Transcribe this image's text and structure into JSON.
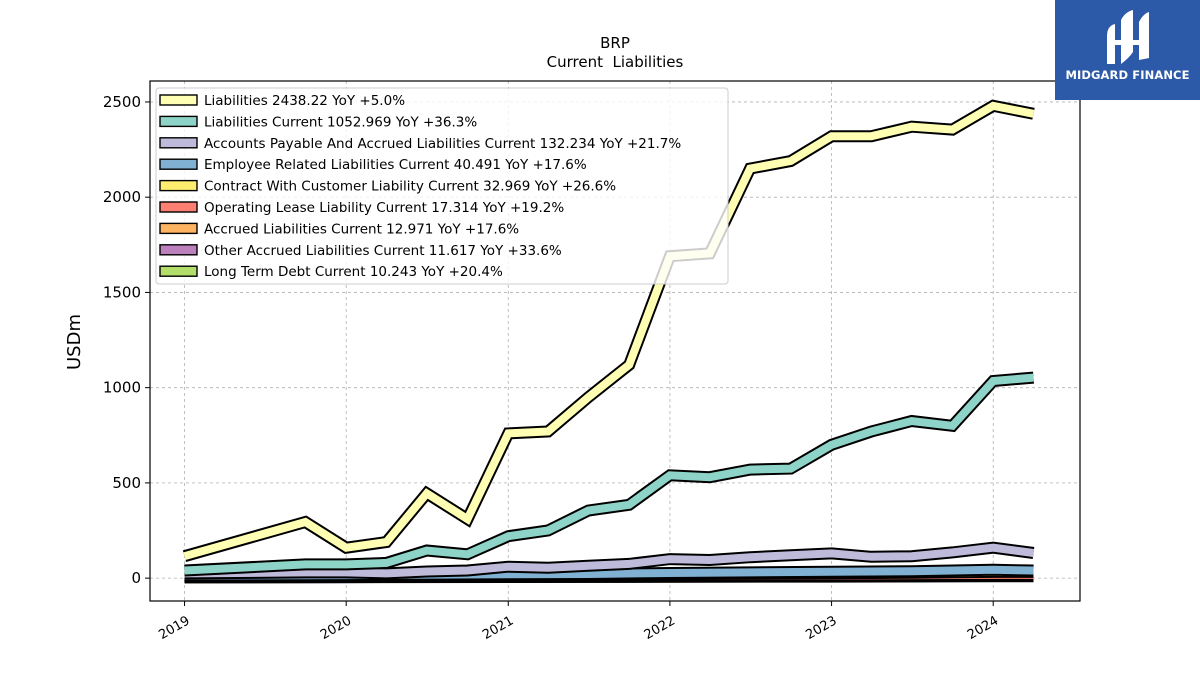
{
  "chart_data": {
    "type": "line",
    "title": "BRP",
    "subtitle": "Current  Liabilities",
    "ylabel": "USDm",
    "xlabel": "",
    "ylim": [
      -120,
      2610
    ],
    "xlim": [
      "2018-10-15",
      "2024-07-15"
    ],
    "yticks": [
      0,
      500,
      1000,
      1500,
      2000,
      2500
    ],
    "xticks": [
      "2019",
      "2020",
      "2021",
      "2022",
      "2023",
      "2024"
    ],
    "grid": true,
    "legend_position": "top-left",
    "series": [
      {
        "name": "Liabilities",
        "legend_label": "Liabilities  2438.22 YoY +5.0%",
        "color": "#ffffb3",
        "points": [
          [
            "2019-01-01",
            115
          ],
          [
            "2019-10-01",
            295
          ],
          [
            "2020-01-01",
            160
          ],
          [
            "2020-04-01",
            190
          ],
          [
            "2020-07-01",
            445
          ],
          [
            "2020-10-01",
            310
          ],
          [
            "2021-01-01",
            760
          ],
          [
            "2021-04-01",
            770
          ],
          [
            "2021-07-01",
            950
          ],
          [
            "2021-10-01",
            1120
          ],
          [
            "2022-01-01",
            1690
          ],
          [
            "2022-04-01",
            1705
          ],
          [
            "2022-07-01",
            2150
          ],
          [
            "2022-10-01",
            2190
          ],
          [
            "2023-01-01",
            2320
          ],
          [
            "2023-04-01",
            2320
          ],
          [
            "2023-07-01",
            2370
          ],
          [
            "2023-10-01",
            2355
          ],
          [
            "2024-01-01",
            2480
          ],
          [
            "2024-04-01",
            2438
          ]
        ]
      },
      {
        "name": "Liabilities Current",
        "legend_label": "Liabilities Current  1052.969 YoY +36.3%",
        "color": "#8dd3c7",
        "points": [
          [
            "2019-01-01",
            40
          ],
          [
            "2019-10-01",
            72
          ],
          [
            "2020-01-01",
            72
          ],
          [
            "2020-04-01",
            80
          ],
          [
            "2020-07-01",
            145
          ],
          [
            "2020-10-01",
            125
          ],
          [
            "2021-01-01",
            220
          ],
          [
            "2021-04-01",
            250
          ],
          [
            "2021-07-01",
            355
          ],
          [
            "2021-10-01",
            385
          ],
          [
            "2022-01-01",
            540
          ],
          [
            "2022-04-01",
            530
          ],
          [
            "2022-07-01",
            570
          ],
          [
            "2022-10-01",
            575
          ],
          [
            "2023-01-01",
            700
          ],
          [
            "2023-04-01",
            770
          ],
          [
            "2023-07-01",
            825
          ],
          [
            "2023-10-01",
            800
          ],
          [
            "2024-01-01",
            1035
          ],
          [
            "2024-04-01",
            1053
          ]
        ]
      },
      {
        "name": "Accounts Payable And Accrued Liabilities Current",
        "legend_label": "Accounts Payable And Accrued Liabilities Current  132.234 YoY +21.7%",
        "color": "#bebada",
        "points": [
          [
            "2019-01-01",
            25
          ],
          [
            "2019-10-01",
            30
          ],
          [
            "2020-01-01",
            30
          ],
          [
            "2020-04-01",
            25
          ],
          [
            "2020-07-01",
            35
          ],
          [
            "2020-10-01",
            40
          ],
          [
            "2021-01-01",
            60
          ],
          [
            "2021-04-01",
            55
          ],
          [
            "2021-07-01",
            65
          ],
          [
            "2021-10-01",
            75
          ],
          [
            "2022-01-01",
            100
          ],
          [
            "2022-04-01",
            95
          ],
          [
            "2022-07-01",
            110
          ],
          [
            "2022-10-01",
            120
          ],
          [
            "2023-01-01",
            130
          ],
          [
            "2023-04-01",
            112
          ],
          [
            "2023-07-01",
            115
          ],
          [
            "2023-10-01",
            135
          ],
          [
            "2024-01-01",
            160
          ],
          [
            "2024-04-01",
            132
          ]
        ]
      },
      {
        "name": "Employee Related Liabilities Current",
        "legend_label": "Employee Related Liabilities Current  40.491 YoY +17.6%",
        "color": "#80b1d3",
        "points": [
          [
            "2019-01-01",
            14
          ],
          [
            "2020-01-01",
            16
          ],
          [
            "2021-01-01",
            20
          ],
          [
            "2021-07-01",
            22
          ],
          [
            "2022-01-01",
            27
          ],
          [
            "2022-07-01",
            30
          ],
          [
            "2023-01-01",
            34
          ],
          [
            "2023-07-01",
            36
          ],
          [
            "2024-01-01",
            44
          ],
          [
            "2024-04-01",
            40
          ]
        ]
      },
      {
        "name": "Contract With Customer Liability Current",
        "legend_label": "Contract With Customer Liability Current  32.969 YoY +26.6%",
        "color": "#ffed6f",
        "points": [
          [
            "2019-01-01",
            10
          ],
          [
            "2020-01-01",
            12
          ],
          [
            "2021-01-01",
            15
          ],
          [
            "2022-01-01",
            20
          ],
          [
            "2022-07-01",
            24
          ],
          [
            "2023-01-01",
            26
          ],
          [
            "2023-07-01",
            28
          ],
          [
            "2024-01-01",
            33
          ],
          [
            "2024-04-01",
            33
          ]
        ]
      },
      {
        "name": "Operating Lease Liability Current",
        "legend_label": "Operating Lease Liability Current  17.314 YoY +19.2%",
        "color": "#fb8072",
        "points": [
          [
            "2019-01-01",
            8
          ],
          [
            "2020-01-01",
            9
          ],
          [
            "2021-01-01",
            10
          ],
          [
            "2022-01-01",
            12
          ],
          [
            "2023-01-01",
            14
          ],
          [
            "2024-01-01",
            17
          ],
          [
            "2024-04-01",
            17
          ]
        ]
      },
      {
        "name": "Accrued Liabilities Current",
        "legend_label": "Accrued Liabilities Current  12.971 YoY +17.6%",
        "color": "#fdb462",
        "points": [
          [
            "2019-01-01",
            6
          ],
          [
            "2020-01-01",
            7
          ],
          [
            "2021-01-01",
            8
          ],
          [
            "2022-01-01",
            10
          ],
          [
            "2023-01-01",
            11
          ],
          [
            "2024-01-01",
            13
          ],
          [
            "2024-04-01",
            13
          ]
        ]
      },
      {
        "name": "Other Accrued Liabilities Current",
        "legend_label": "Other Accrued Liabilities Current  11.617 YoY +33.6%",
        "color": "#bc80bd",
        "points": [
          [
            "2019-01-01",
            5
          ],
          [
            "2020-01-01",
            6
          ],
          [
            "2021-01-01",
            7
          ],
          [
            "2022-01-01",
            8
          ],
          [
            "2023-01-01",
            9
          ],
          [
            "2024-01-01",
            12
          ],
          [
            "2024-04-01",
            12
          ]
        ]
      },
      {
        "name": "Long Term Debt Current",
        "legend_label": "Long Term Debt Current  10.243 YoY +20.4%",
        "color": "#b3de69",
        "points": [
          [
            "2019-01-01",
            4
          ],
          [
            "2020-01-01",
            5
          ],
          [
            "2021-01-01",
            6
          ],
          [
            "2022-01-01",
            7
          ],
          [
            "2023-01-01",
            8
          ],
          [
            "2024-01-01",
            10
          ],
          [
            "2024-04-01",
            10
          ]
        ]
      }
    ]
  },
  "brand": {
    "name": "MIDGARD FINANCE",
    "icon": "midgard-logo-icon",
    "background": "#2d5aa8"
  }
}
